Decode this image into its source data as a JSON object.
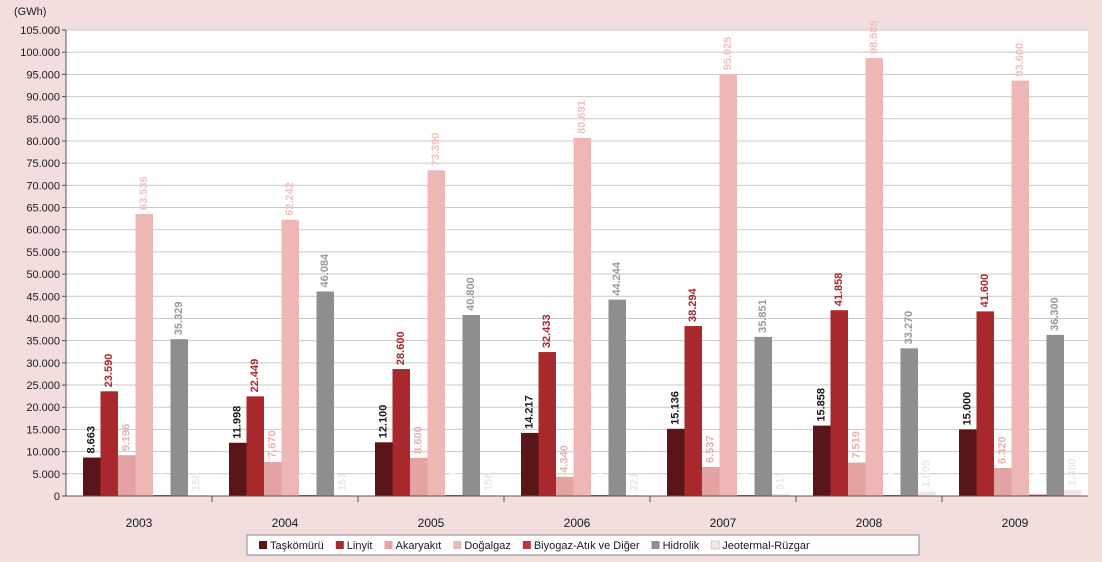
{
  "chart_data": {
    "type": "bar",
    "unit_label": "(GWh)",
    "categories": [
      "2003",
      "2004",
      "2005",
      "2006",
      "2007",
      "2008",
      "2009"
    ],
    "ylim": [
      0,
      105000
    ],
    "yticks": [
      0,
      5000,
      10000,
      15000,
      20000,
      25000,
      30000,
      35000,
      40000,
      45000,
      50000,
      55000,
      60000,
      65000,
      70000,
      75000,
      80000,
      85000,
      90000,
      95000,
      100000,
      105000
    ],
    "ytick_labels": [
      "0",
      "5.000",
      "10.000",
      "15.000",
      "20.000",
      "25.000",
      "30.000",
      "35.000",
      "40.000",
      "45.000",
      "50.000",
      "55.000",
      "60.000",
      "65.000",
      "70.000",
      "75.000",
      "80.000",
      "85.000",
      "90.000",
      "95.000",
      "100.000",
      "105.000"
    ],
    "grid": true,
    "legend_position": "bottom",
    "series": [
      {
        "name": "Taşkömürü",
        "color": "#5a1518",
        "label_color": "#1a1a1a",
        "values": [
          8663,
          11998,
          12100,
          14217,
          15136,
          15858,
          15000
        ],
        "labels": [
          "8.663",
          "11.998",
          "12.100",
          "14.217",
          "15.136",
          "15.858",
          "15.000"
        ]
      },
      {
        "name": "Linyit",
        "color": "#a8282c",
        "label_color": "#a8282c",
        "values": [
          23590,
          22449,
          28600,
          32433,
          38294,
          41858,
          41600
        ],
        "labels": [
          "23.590",
          "22.449",
          "28.600",
          "32.433",
          "38.294",
          "41.858",
          "41.600"
        ]
      },
      {
        "name": "Akaryakıt",
        "color": "#e3a3a3",
        "label_color": "#e4b3b3",
        "values": [
          9196,
          7670,
          8600,
          4340,
          6537,
          7519,
          6320
        ],
        "labels": [
          "9.196",
          "7.670",
          "8.600",
          "4.340",
          "6.537",
          "7.519",
          "6.320"
        ]
      },
      {
        "name": "Doğalgaz",
        "color": "#efb6b6",
        "label_color": "#efc3c3",
        "values": [
          63536,
          62242,
          73390,
          80691,
          95025,
          98685,
          93600
        ],
        "labels": [
          "63.536",
          "62.242",
          "73.390",
          "80.691",
          "95.025",
          "98.685",
          "93.600"
        ]
      },
      {
        "name": "Biyogaz-Atık ve Diğer",
        "color": "#b8383c",
        "label_color": "#ffffff",
        "values": [
          116,
          104,
          150,
          154,
          214,
          220,
          300
        ],
        "labels": [
          "116",
          "104",
          "150",
          "154",
          "214",
          "220",
          "300"
        ]
      },
      {
        "name": "Hidrolik",
        "color": "#8e8e8e",
        "label_color": "#9a9a9a",
        "values": [
          35329,
          46084,
          40800,
          44244,
          35851,
          33270,
          36300
        ],
        "labels": [
          "35.329",
          "46.084",
          "40.800",
          "44.244",
          "35.851",
          "33.270",
          "36.300"
        ]
      },
      {
        "name": "Jeotermal-Rüzgar",
        "color": "#f5e6e6",
        "label_color": "#e8e8e8",
        "values": [
          158,
          151,
          158,
          221,
          511,
          1009,
          1380
        ],
        "labels": [
          "158",
          "151",
          "158",
          "221",
          "511",
          "1.009",
          "1.380"
        ]
      }
    ]
  }
}
